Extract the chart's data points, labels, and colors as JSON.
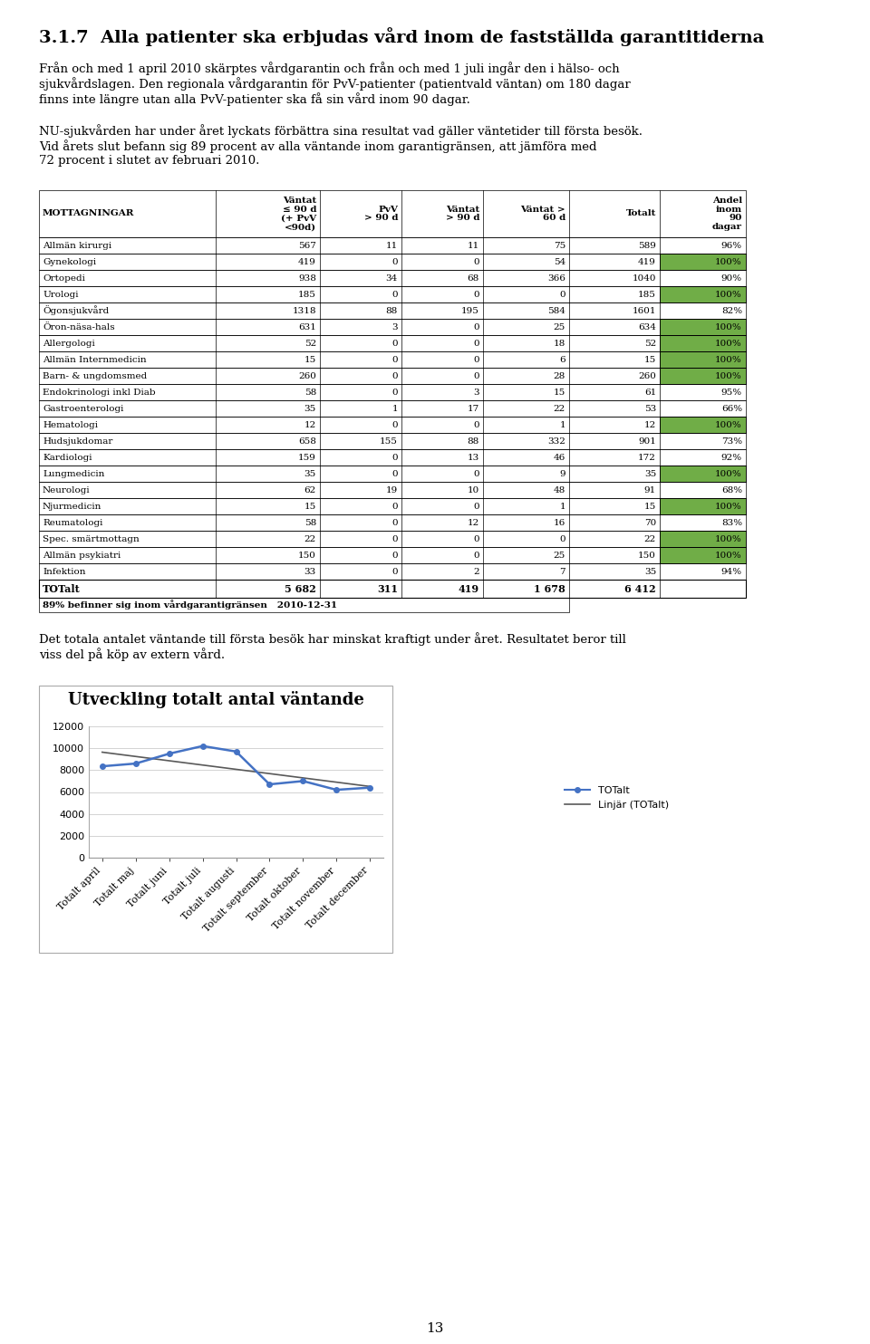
{
  "title": "3.1.7  Alla patienter ska erbjudas vård inom de fastställda garantitiderna",
  "para1": "Från och med 1 april 2010 skärptes vårdgarantin och från och med 1 juli ingår den i hälso- och sjukvårdslagen. Den regionala vårdgarantin för PvV-patienter (patientvald väntan) om 180 dagar finns inte längre utan alla PvV-patienter ska få sin vård inom 90 dagar.",
  "para2": "NU-sjukvården har under året lyckats förbättra sina resultat vad gäller väntetider till första besök. Vid årets slut befann sig 89 procent av alla väntande inom garantigränsen, att jämföra med 72 procent i slutet av februari 2010.",
  "para3": "Det totala antalet väntande till första besök har minskat kraftigt under året. Resultatet beror till viss del på köp av extern vård.",
  "table_headers": [
    "MOTTAGNINGAR",
    "Väntat\n≤ 90 d\n(+ PvV\n<90d)",
    "PvV\n> 90 d",
    "Väntat\n> 90 d",
    "Väntat >\n60 d",
    "Totalt",
    "Andel\ninom\n90\ndagar"
  ],
  "table_rows": [
    [
      "Allmän kirurgi",
      "567",
      "11",
      "11",
      "75",
      "589",
      "96%",
      false
    ],
    [
      "Gynekologi",
      "419",
      "0",
      "0",
      "54",
      "419",
      "100%",
      true
    ],
    [
      "Ortopedi",
      "938",
      "34",
      "68",
      "366",
      "1040",
      "90%",
      false
    ],
    [
      "Urologi",
      "185",
      "0",
      "0",
      "0",
      "185",
      "100%",
      true
    ],
    [
      "Ögonsjukvård",
      "1318",
      "88",
      "195",
      "584",
      "1601",
      "82%",
      false
    ],
    [
      "Öron-näsa-hals",
      "631",
      "3",
      "0",
      "25",
      "634",
      "100%",
      true
    ],
    [
      "Allergologi",
      "52",
      "0",
      "0",
      "18",
      "52",
      "100%",
      true
    ],
    [
      "Allmän Internmedicin",
      "15",
      "0",
      "0",
      "6",
      "15",
      "100%",
      true
    ],
    [
      "Barn- & ungdomsmed",
      "260",
      "0",
      "0",
      "28",
      "260",
      "100%",
      true
    ],
    [
      "Endokrinologi inkl Diab",
      "58",
      "0",
      "3",
      "15",
      "61",
      "95%",
      false
    ],
    [
      "Gastroenterologi",
      "35",
      "1",
      "17",
      "22",
      "53",
      "66%",
      false
    ],
    [
      "Hematologi",
      "12",
      "0",
      "0",
      "1",
      "12",
      "100%",
      true
    ],
    [
      "Hudsjukdomar",
      "658",
      "155",
      "88",
      "332",
      "901",
      "73%",
      false
    ],
    [
      "Kardiologi",
      "159",
      "0",
      "13",
      "46",
      "172",
      "92%",
      false
    ],
    [
      "Lungmedicin",
      "35",
      "0",
      "0",
      "9",
      "35",
      "100%",
      true
    ],
    [
      "Neurologi",
      "62",
      "19",
      "10",
      "48",
      "91",
      "68%",
      false
    ],
    [
      "Njurmedicin",
      "15",
      "0",
      "0",
      "1",
      "15",
      "100%",
      true
    ],
    [
      "Reumatologi",
      "58",
      "0",
      "12",
      "16",
      "70",
      "83%",
      false
    ],
    [
      "Spec. smärtmottagn",
      "22",
      "0",
      "0",
      "0",
      "22",
      "100%",
      true
    ],
    [
      "Allmän psykiatri",
      "150",
      "0",
      "0",
      "25",
      "150",
      "100%",
      true
    ],
    [
      "Infektion",
      "33",
      "0",
      "2",
      "7",
      "35",
      "94%",
      false
    ]
  ],
  "table_total": [
    "TOTalt",
    "5 682",
    "311",
    "419",
    "1 678",
    "6 412",
    ""
  ],
  "table_footnote": "89% befinner sig inom vårdgarantigränsen   2010-12-31",
  "chart_title": "Utveckling totalt antal väntande",
  "chart_categories": [
    "Totalt april",
    "Totalt maj",
    "Totalt juni",
    "Totalt juli",
    "Totalt augusti",
    "Totalt september",
    "Totalt oktober",
    "Totalt november",
    "Totalt december"
  ],
  "chart_values": [
    8350,
    8600,
    9500,
    10200,
    9700,
    6700,
    7000,
    6200,
    6400
  ],
  "chart_yticks": [
    0,
    2000,
    4000,
    6000,
    8000,
    10000,
    12000
  ],
  "green_color": "#70AD47",
  "line_color": "#4472C4",
  "trend_color": "#595959",
  "page_number": "13"
}
